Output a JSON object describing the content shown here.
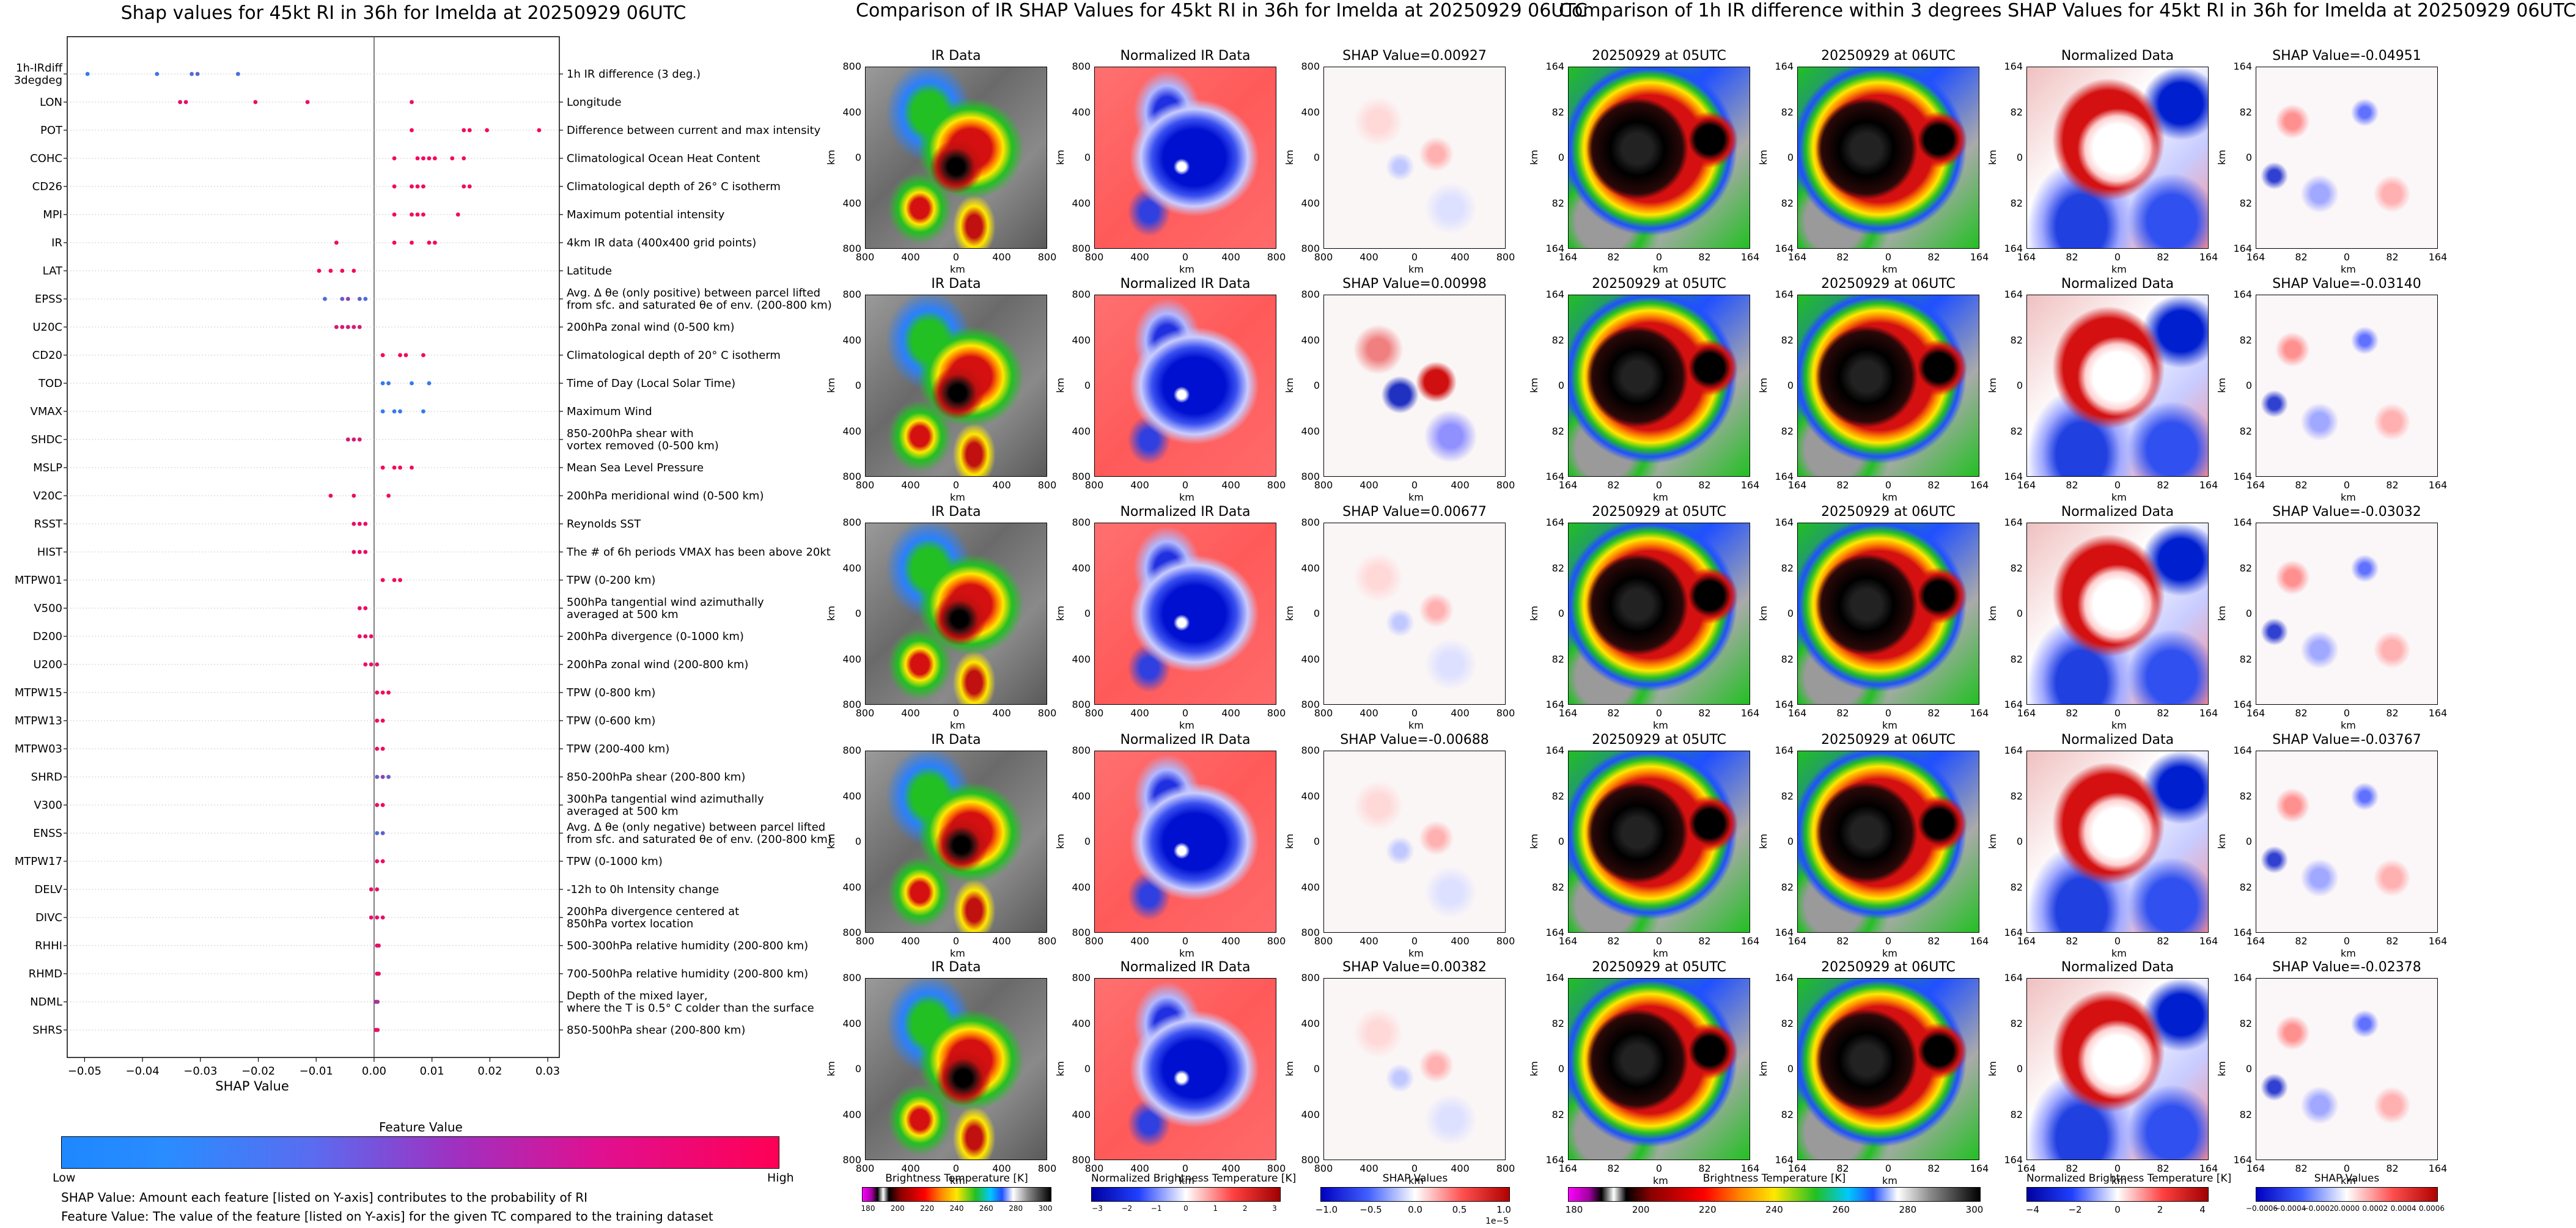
{
  "left": {
    "title": "Shap values for 45kt RI in 36h for Imelda at 20250929 06UTC",
    "xlabel": "SHAP Value",
    "xticks": [
      "-0.05",
      "-0.04",
      "-0.03",
      "-0.02",
      "-0.01",
      "0.00",
      "0.01",
      "0.02",
      "0.03"
    ],
    "colorbar_title": "Feature Value",
    "colorbar_low": "Low",
    "colorbar_high": "High",
    "note1": "SHAP Value: Amount each feature [listed on Y-axis] contributes to the probability of RI",
    "note2": "Feature Value: The value of the feature [listed on Y-axis] for the given TC compared to the training dataset"
  },
  "chart_data": {
    "type": "scatter",
    "title": "Shap values for 45kt RI in 36h for Imelda at 20250929 06UTC",
    "xlabel": "SHAP Value",
    "xlim": [
      -0.053,
      0.032
    ],
    "legend": "bottom",
    "colors": {
      "low": "#1e88ff",
      "high": "#ff0055"
    },
    "features": [
      {
        "name": "1h-IRdiff\n3degdeg",
        "desc": "1h IR difference (3 deg.)",
        "points": [
          [
            -0.0495,
            0.1
          ],
          [
            -0.0375,
            0.15
          ],
          [
            -0.0315,
            0.2
          ],
          [
            -0.0305,
            0.3
          ],
          [
            -0.0235,
            0.2
          ]
        ]
      },
      {
        "name": "LON",
        "desc": "Longitude",
        "points": [
          [
            -0.0335,
            0.9
          ],
          [
            -0.0325,
            0.9
          ],
          [
            -0.0205,
            0.9
          ],
          [
            -0.0115,
            0.9
          ],
          [
            0.0065,
            0.9
          ]
        ]
      },
      {
        "name": "POT",
        "desc": "Difference between current and max intensity",
        "points": [
          [
            0.0065,
            0.95
          ],
          [
            0.0155,
            0.95
          ],
          [
            0.0165,
            0.95
          ],
          [
            0.0195,
            0.95
          ],
          [
            0.0285,
            0.95
          ]
        ]
      },
      {
        "name": "COHC",
        "desc": "Climatological Ocean Heat Content",
        "points": [
          [
            0.0035,
            0.95
          ],
          [
            0.0075,
            0.95
          ],
          [
            0.0085,
            0.95
          ],
          [
            0.0095,
            0.95
          ],
          [
            0.0105,
            0.95
          ],
          [
            0.0135,
            0.95
          ],
          [
            0.0155,
            0.95
          ]
        ]
      },
      {
        "name": "CD26",
        "desc": "Climatological depth of 26° C isotherm",
        "points": [
          [
            0.0035,
            0.95
          ],
          [
            0.0065,
            0.95
          ],
          [
            0.0075,
            0.95
          ],
          [
            0.0085,
            0.95
          ],
          [
            0.0155,
            0.95
          ],
          [
            0.0165,
            0.95
          ]
        ]
      },
      {
        "name": "MPI",
        "desc": "Maximum potential intensity",
        "points": [
          [
            0.0035,
            0.95
          ],
          [
            0.0065,
            0.95
          ],
          [
            0.0075,
            0.95
          ],
          [
            0.0085,
            0.95
          ],
          [
            0.0145,
            0.95
          ]
        ]
      },
      {
        "name": "IR",
        "desc": "4km IR data (400x400 grid points)",
        "points": [
          [
            -0.0065,
            0.95
          ],
          [
            0.0035,
            0.95
          ],
          [
            0.0065,
            0.95
          ],
          [
            0.0095,
            0.95
          ],
          [
            0.0105,
            0.95
          ]
        ]
      },
      {
        "name": "LAT",
        "desc": "Latitude",
        "points": [
          [
            -0.0095,
            0.95
          ],
          [
            -0.0075,
            0.95
          ],
          [
            -0.0055,
            0.95
          ],
          [
            -0.0035,
            0.95
          ]
        ]
      },
      {
        "name": "EPSS",
        "desc": "Avg. Δ θe (only positive) between parcel lifted\nfrom sfc. and saturated θe of env. (200-800 km)",
        "points": [
          [
            -0.0085,
            0.2
          ],
          [
            -0.0055,
            0.3
          ],
          [
            -0.0045,
            0.5
          ],
          [
            -0.0025,
            0.3
          ],
          [
            -0.0015,
            0.2
          ]
        ]
      },
      {
        "name": "U20C",
        "desc": "200hPa zonal wind (0-500 km)",
        "points": [
          [
            -0.0065,
            0.8
          ],
          [
            -0.0055,
            0.8
          ],
          [
            -0.0045,
            0.8
          ],
          [
            -0.0035,
            0.8
          ],
          [
            -0.0025,
            0.8
          ]
        ]
      },
      {
        "name": "CD20",
        "desc": "Climatological depth of 20° C isotherm",
        "points": [
          [
            0.0015,
            0.95
          ],
          [
            0.0045,
            0.95
          ],
          [
            0.0055,
            0.95
          ],
          [
            0.0085,
            0.95
          ]
        ]
      },
      {
        "name": "TOD",
        "desc": "Time of Day (Local Solar Time)",
        "points": [
          [
            0.0015,
            0.1
          ],
          [
            0.0025,
            0.1
          ],
          [
            0.0065,
            0.1
          ],
          [
            0.0095,
            0.1
          ]
        ]
      },
      {
        "name": "VMAX",
        "desc": "Maximum Wind",
        "points": [
          [
            0.0015,
            0.1
          ],
          [
            0.0035,
            0.1
          ],
          [
            0.0045,
            0.1
          ],
          [
            0.0085,
            0.1
          ]
        ]
      },
      {
        "name": "SHDC",
        "desc": "850-200hPa shear with\nvortex removed (0-500 km)",
        "points": [
          [
            -0.0045,
            0.8
          ],
          [
            -0.0035,
            0.8
          ],
          [
            -0.0025,
            0.8
          ]
        ]
      },
      {
        "name": "MSLP",
        "desc": "Mean Sea Level Pressure",
        "points": [
          [
            0.0015,
            0.95
          ],
          [
            0.0035,
            0.95
          ],
          [
            0.0045,
            0.95
          ],
          [
            0.0065,
            0.95
          ]
        ]
      },
      {
        "name": "V20C",
        "desc": "200hPa meridional wind (0-500 km)",
        "points": [
          [
            -0.0075,
            0.9
          ],
          [
            -0.0035,
            0.9
          ],
          [
            0.0025,
            0.9
          ]
        ]
      },
      {
        "name": "RSST",
        "desc": "Reynolds SST",
        "points": [
          [
            -0.0035,
            0.9
          ],
          [
            -0.0025,
            0.9
          ],
          [
            -0.0015,
            0.9
          ]
        ]
      },
      {
        "name": "HIST",
        "desc": "The # of 6h periods VMAX has been above 20kt",
        "points": [
          [
            -0.0035,
            0.9
          ],
          [
            -0.0025,
            0.9
          ],
          [
            -0.0015,
            0.9
          ]
        ]
      },
      {
        "name": "MTPW01",
        "desc": "TPW (0-200 km)",
        "points": [
          [
            0.0015,
            0.95
          ],
          [
            0.0035,
            0.95
          ],
          [
            0.0045,
            0.95
          ]
        ]
      },
      {
        "name": "V500",
        "desc": "500hPa tangential wind azimuthally\naveraged at 500 km",
        "points": [
          [
            -0.0025,
            0.9
          ],
          [
            -0.0015,
            0.9
          ]
        ]
      },
      {
        "name": "D200",
        "desc": "200hPa divergence (0-1000 km)",
        "points": [
          [
            -0.0025,
            0.9
          ],
          [
            -0.0015,
            0.9
          ],
          [
            -0.0005,
            0.9
          ]
        ]
      },
      {
        "name": "U200",
        "desc": "200hPa zonal wind (200-800 km)",
        "points": [
          [
            -0.0015,
            0.9
          ],
          [
            -0.0005,
            0.9
          ],
          [
            0.0005,
            0.9
          ]
        ]
      },
      {
        "name": "MTPW15",
        "desc": "TPW (0-800 km)",
        "points": [
          [
            0.0005,
            0.95
          ],
          [
            0.0015,
            0.95
          ],
          [
            0.0025,
            0.95
          ]
        ]
      },
      {
        "name": "MTPW13",
        "desc": "TPW (0-600 km)",
        "points": [
          [
            0.0005,
            0.95
          ],
          [
            0.0015,
            0.95
          ]
        ]
      },
      {
        "name": "MTPW03",
        "desc": "TPW (200-400 km)",
        "points": [
          [
            0.0005,
            0.95
          ],
          [
            0.0015,
            0.95
          ]
        ]
      },
      {
        "name": "SHRD",
        "desc": "850-200hPa shear (200-800 km)",
        "points": [
          [
            0.0005,
            0.3
          ],
          [
            0.0015,
            0.5
          ],
          [
            0.0025,
            0.3
          ]
        ]
      },
      {
        "name": "V300",
        "desc": "300hPa tangential wind azimuthally\naveraged at 500 km",
        "points": [
          [
            0.0005,
            0.95
          ],
          [
            0.0015,
            0.95
          ]
        ]
      },
      {
        "name": "ENSS",
        "desc": "Avg. Δ θe (only negative) between parcel lifted\nfrom sfc. and saturated θe of env. (200-800 km)",
        "points": [
          [
            0.0005,
            0.2
          ],
          [
            0.0015,
            0.3
          ]
        ]
      },
      {
        "name": "MTPW17",
        "desc": "TPW (0-1000 km)",
        "points": [
          [
            0.0005,
            0.95
          ],
          [
            0.0015,
            0.95
          ]
        ]
      },
      {
        "name": "DELV",
        "desc": "-12h to 0h Intensity change",
        "points": [
          [
            -0.0005,
            0.9
          ],
          [
            0.0005,
            0.9
          ]
        ]
      },
      {
        "name": "DIVC",
        "desc": "200hPa divergence centered at\n850hPa vortex location",
        "points": [
          [
            -0.0005,
            0.9
          ],
          [
            0.0005,
            0.9
          ],
          [
            0.0015,
            0.9
          ]
        ]
      },
      {
        "name": "RHHI",
        "desc": "500-300hPa relative humidity (200-800 km)",
        "points": [
          [
            0.0005,
            0.9
          ],
          [
            0.0008,
            0.9
          ]
        ]
      },
      {
        "name": "RHMD",
        "desc": "700-500hPa relative humidity (200-800 km)",
        "points": [
          [
            0.0005,
            0.9
          ],
          [
            0.0008,
            0.9
          ]
        ]
      },
      {
        "name": "NDML",
        "desc": "Depth of the mixed layer,\nwhere the T is 0.5° C colder than the surface",
        "points": [
          [
            0.0003,
            0.6
          ],
          [
            0.0006,
            0.6
          ]
        ]
      },
      {
        "name": "SHRS",
        "desc": "850-500hPa shear (200-800 km)",
        "points": [
          [
            0.0003,
            0.9
          ],
          [
            0.0006,
            0.9
          ]
        ]
      }
    ]
  },
  "mid": {
    "title": "Comparison of IR SHAP Values for 45kt RI in 36h for Imelda at 20250929 06UTC",
    "col_titles": [
      "IR Data",
      "Normalized IR Data"
    ],
    "shap_titles": [
      "SHAP Value=0.00927",
      "SHAP Value=0.00998",
      "SHAP Value=0.00677",
      "SHAP Value=-0.00688",
      "SHAP Value=0.00382"
    ],
    "yticks": [
      "800",
      "400",
      "0",
      "400",
      "800"
    ],
    "xticks": [
      "800",
      "400",
      "0",
      "400",
      "800"
    ],
    "axis_label": "km",
    "cbars": [
      {
        "title": "Brightness Temperature [K]",
        "ticks": [
          "180",
          "200",
          "220",
          "240",
          "260",
          "280",
          "300"
        ]
      },
      {
        "title": "Normalized Brightness Temperature [K]",
        "ticks": [
          "−3",
          "−2",
          "−1",
          "0",
          "1",
          "2",
          "3"
        ]
      },
      {
        "title": "SHAP Values",
        "ticks": [
          "−1.0",
          "−0.5",
          "0.0",
          "0.5",
          "1.0"
        ],
        "exp": "1e−5"
      }
    ]
  },
  "right": {
    "title": "Comparison of 1h IR difference within 3 degrees SHAP Values for 45kt RI in 36h for Imelda at 20250929 06UTC",
    "col_titles": [
      "20250929 at 05UTC",
      "20250929 at 06UTC",
      "Normalized Data"
    ],
    "shap_titles": [
      "SHAP Value=-0.04951",
      "SHAP Value=-0.03140",
      "SHAP Value=-0.03032",
      "SHAP Value=-0.03767",
      "SHAP Value=-0.02378"
    ],
    "yticks": [
      "164",
      "82",
      "0",
      "82",
      "164"
    ],
    "xticks": [
      "164",
      "82",
      "0",
      "82",
      "164"
    ],
    "axis_label": "km",
    "cbars": [
      {
        "title": "Brightness Temperature [K]",
        "ticks": [
          "180",
          "200",
          "220",
          "240",
          "260",
          "280",
          "300"
        ]
      },
      {
        "title": "Normalized Brightness Temperature [K]",
        "ticks": [
          "−4",
          "−2",
          "0",
          "2",
          "4"
        ]
      },
      {
        "title": "SHAP Values",
        "ticks": [
          "−0.0006",
          "−0.0004",
          "−0.0002",
          "0.0000",
          "0.0002",
          "0.0004",
          "0.0006"
        ]
      }
    ]
  },
  "colors": {
    "ir_gray": "#8a8a8a",
    "ir_cold": "#000000",
    "ir_red": "#d41010",
    "ir_green": "#22c022",
    "ir_blue": "#2050ff",
    "norm_red": "#ff6a6a",
    "norm_blue": "#0010d0"
  }
}
